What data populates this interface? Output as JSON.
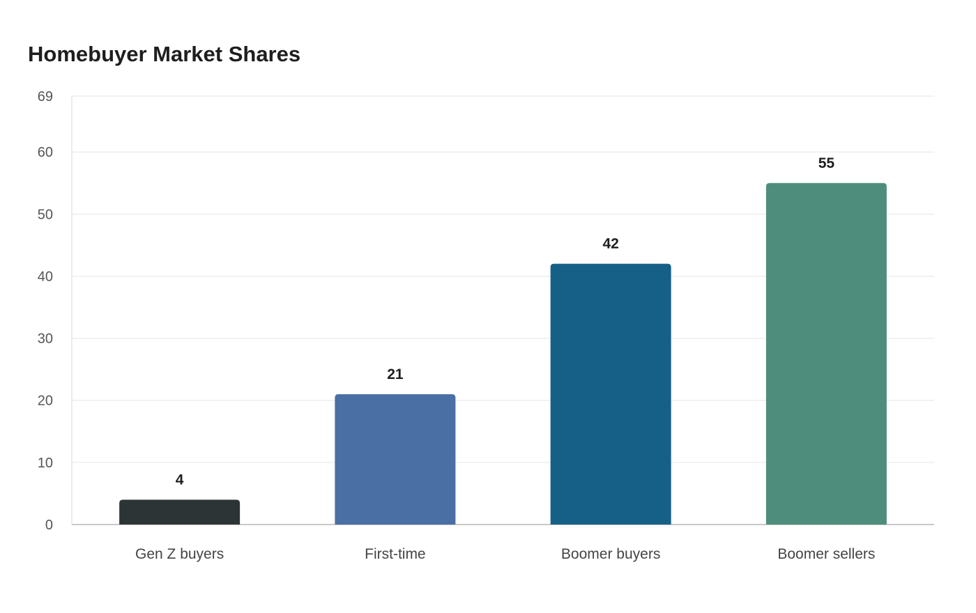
{
  "chart_data": {
    "type": "bar",
    "title": "Homebuyer Market Shares",
    "xlabel": "",
    "ylabel": "",
    "categories": [
      "Gen Z buyers",
      "First-time",
      "Boomer buyers",
      "Boomer sellers"
    ],
    "values": [
      4,
      21,
      42,
      55
    ],
    "bar_colors": [
      "#2d3436",
      "#4a6fa5",
      "#166088",
      "#4e8d7c"
    ],
    "ylim": [
      0,
      69
    ],
    "yticks": [
      0,
      10,
      20,
      30,
      40,
      50,
      60,
      69
    ],
    "grid": true,
    "legend": "none",
    "data_labels": true
  }
}
